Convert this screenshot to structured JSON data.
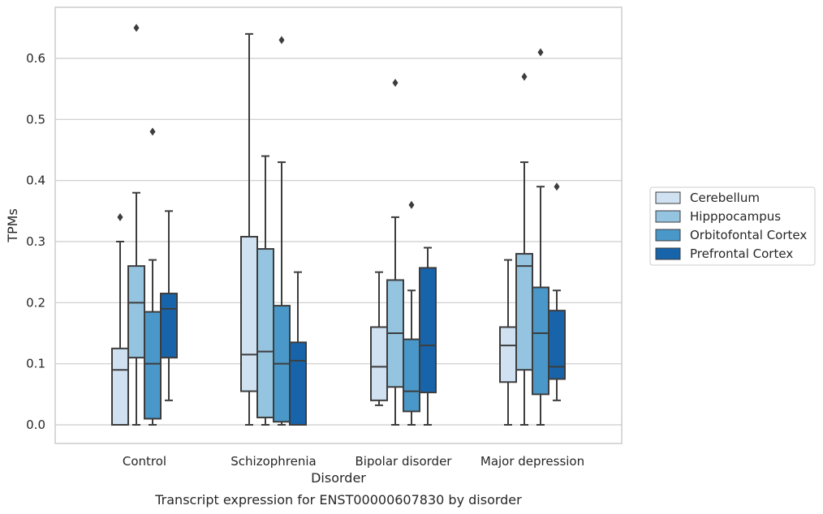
{
  "chart_data": {
    "type": "boxplot",
    "xlabel": "Disorder",
    "ylabel": "TPMs",
    "caption": "Transcript expression for ENST00000607830 by disorder",
    "ylim": [
      -0.032,
      0.685
    ],
    "yticks": [
      "0.0",
      "0.1",
      "0.2",
      "0.3",
      "0.4",
      "0.5",
      "0.6"
    ],
    "ytick_values": [
      0.0,
      0.1,
      0.2,
      0.3,
      0.4,
      0.5,
      0.6
    ],
    "grid": "horizontal",
    "legend_position": "right",
    "categories": [
      "Control",
      "Schizophrenia",
      "Bipolar disorder",
      "Major depression"
    ],
    "series": [
      {
        "name": "Cerebellum",
        "color": "#d0e1f2",
        "boxes": [
          {
            "min": 0.0,
            "q1": 0.0,
            "median": 0.09,
            "q3": 0.125,
            "max": 0.3,
            "outliers": [
              0.34
            ]
          },
          {
            "min": 0.0,
            "q1": 0.055,
            "median": 0.115,
            "q3": 0.308,
            "max": 0.64,
            "outliers": []
          },
          {
            "min": 0.032,
            "q1": 0.04,
            "median": 0.095,
            "q3": 0.16,
            "max": 0.25,
            "outliers": []
          },
          {
            "min": 0.0,
            "q1": 0.07,
            "median": 0.13,
            "q3": 0.16,
            "max": 0.27,
            "outliers": []
          }
        ]
      },
      {
        "name": "Hipppocampus",
        "color": "#94c4df",
        "boxes": [
          {
            "min": 0.0,
            "q1": 0.11,
            "median": 0.2,
            "q3": 0.26,
            "max": 0.38,
            "outliers": [
              0.65
            ]
          },
          {
            "min": 0.0,
            "q1": 0.012,
            "median": 0.12,
            "q3": 0.288,
            "max": 0.44,
            "outliers": []
          },
          {
            "min": 0.0,
            "q1": 0.062,
            "median": 0.15,
            "q3": 0.237,
            "max": 0.34,
            "outliers": [
              0.56
            ]
          },
          {
            "min": 0.0,
            "q1": 0.09,
            "median": 0.26,
            "q3": 0.28,
            "max": 0.43,
            "outliers": [
              0.57
            ]
          }
        ]
      },
      {
        "name": "Orbitofontal Cortex",
        "color": "#4a98c9",
        "boxes": [
          {
            "min": 0.0,
            "q1": 0.01,
            "median": 0.1,
            "q3": 0.185,
            "max": 0.27,
            "outliers": [
              0.48
            ]
          },
          {
            "min": 0.0,
            "q1": 0.005,
            "median": 0.1,
            "q3": 0.195,
            "max": 0.43,
            "outliers": [
              0.63
            ]
          },
          {
            "min": 0.0,
            "q1": 0.022,
            "median": 0.055,
            "q3": 0.14,
            "max": 0.22,
            "outliers": [
              0.36
            ]
          },
          {
            "min": 0.0,
            "q1": 0.05,
            "median": 0.15,
            "q3": 0.225,
            "max": 0.39,
            "outliers": [
              0.61
            ]
          }
        ]
      },
      {
        "name": "Prefrontal Cortex",
        "color": "#1764ab",
        "boxes": [
          {
            "min": 0.04,
            "q1": 0.11,
            "median": 0.19,
            "q3": 0.215,
            "max": 0.35,
            "outliers": []
          },
          {
            "min": 0.0,
            "q1": 0.0,
            "median": 0.105,
            "q3": 0.135,
            "max": 0.25,
            "outliers": []
          },
          {
            "min": 0.0,
            "q1": 0.053,
            "median": 0.13,
            "q3": 0.257,
            "max": 0.29,
            "outliers": []
          },
          {
            "min": 0.04,
            "q1": 0.075,
            "median": 0.095,
            "q3": 0.187,
            "max": 0.22,
            "outliers": [
              0.39
            ]
          }
        ]
      }
    ]
  }
}
